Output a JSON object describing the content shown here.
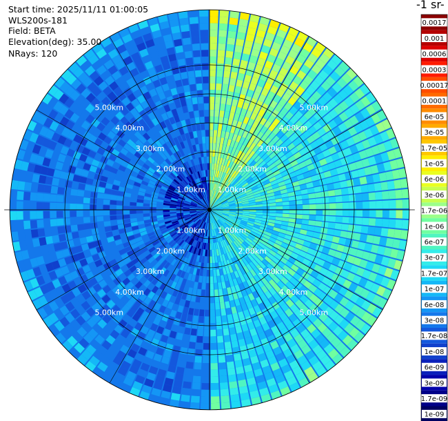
{
  "header": {
    "start_time": "Start time: 2025/11/11 01:00:05",
    "instrument": "WLS200s-181",
    "field": "Field: BETA",
    "elevation": "Elevation(deg): 35.00",
    "nrays": "NRays: 120"
  },
  "colorbar": {
    "title": "-1 sr-",
    "labels": [
      "0.0017",
      "0.001",
      "0.0006",
      "0.0003",
      "0.00017",
      "0.0001",
      "6e-05",
      "3e-05",
      "1.7e-05",
      "1e-05",
      "6e-06",
      "3e-06",
      "1.7e-06",
      "1e-06",
      "6e-07",
      "3e-07",
      "1.7e-07",
      "1e-07",
      "6e-08",
      "3e-08",
      "1.7e-08",
      "1e-08",
      "6e-09",
      "3e-09",
      "1.7e-09",
      "1e-09"
    ],
    "colors": [
      "#8b0000",
      "#b50000",
      "#dd0000",
      "#ff1a00",
      "#ff4d00",
      "#ff6a00",
      "#ff8c00",
      "#ffaa00",
      "#ffc800",
      "#ffee00",
      "#eaff20",
      "#c8ff50",
      "#9cff8a",
      "#70ffa0",
      "#50f5c0",
      "#33ecea",
      "#1ed9f5",
      "#14b8f7",
      "#1496f5",
      "#1478eb",
      "#1458dd",
      "#1040cc",
      "#0a20bb",
      "#0000aa",
      "#000088",
      "#000060"
    ]
  },
  "chart_data": {
    "type": "heatmap",
    "projection": "polar (PPI scan)",
    "field": "BETA",
    "elevation_deg": 35.0,
    "n_rays": 120,
    "range_rings_km": [
      1,
      2,
      3,
      4,
      5
    ],
    "ring_labels": [
      "1.00km",
      "2.00km",
      "3.00km",
      "4.00km",
      "5.00km"
    ],
    "max_range_km": 6.9,
    "color_scale": "log",
    "value_range": [
      1e-09,
      0.0017
    ],
    "sectors": [
      {
        "name": "west",
        "from_deg": 180,
        "to_deg": 360,
        "typical_value": 3e-08
      },
      {
        "name": "north-east",
        "from_deg": 0,
        "to_deg": 40,
        "typical_value": 1.7e-06
      },
      {
        "name": "east",
        "from_deg": 40,
        "to_deg": 150,
        "typical_value": 3e-07
      },
      {
        "name": "south-east",
        "from_deg": 150,
        "to_deg": 180,
        "typical_value": 1.7e-07
      }
    ]
  }
}
